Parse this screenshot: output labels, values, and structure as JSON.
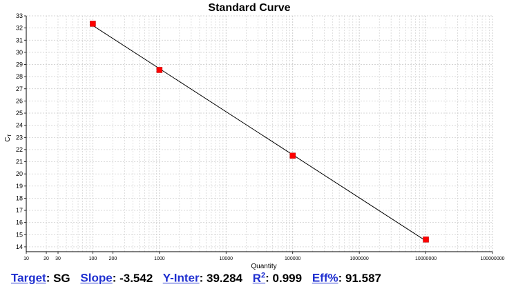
{
  "chart_data": {
    "type": "scatter",
    "title": "Standard Curve",
    "xlabel": "Quantity",
    "ylabel": "C",
    "ylabel_subscript": "T",
    "x_scale": "log",
    "xlim": [
      10,
      100000000
    ],
    "ylim": [
      13.6,
      33
    ],
    "y_ticks": [
      14,
      15,
      16,
      17,
      18,
      19,
      20,
      21,
      22,
      23,
      24,
      25,
      26,
      27,
      28,
      29,
      30,
      31,
      32,
      33
    ],
    "x_ticks": [
      {
        "v": 10,
        "label": "10"
      },
      {
        "v": 20,
        "label": "20"
      },
      {
        "v": 30,
        "label": "30"
      },
      {
        "v": 100,
        "label": "100"
      },
      {
        "v": 200,
        "label": "200"
      },
      {
        "v": 1000,
        "label": "1000"
      },
      {
        "v": 10000,
        "label": "10000"
      },
      {
        "v": 100000,
        "label": "100000"
      },
      {
        "v": 1000000,
        "label": "1000000"
      },
      {
        "v": 10000000,
        "label": "10000000"
      },
      {
        "v": 100000000,
        "label": "100000000"
      }
    ],
    "grid": true,
    "points": [
      {
        "x": 100,
        "y": 32.35
      },
      {
        "x": 1000,
        "y": 28.55
      },
      {
        "x": 100000,
        "y": 21.5
      },
      {
        "x": 10000000,
        "y": 14.6
      }
    ],
    "fit_line": {
      "slope": -3.542,
      "intercept": 39.284
    },
    "colors": {
      "marker": "#ff0000",
      "line": "#000000",
      "grid": "#c8c8c8",
      "link": "#1f2fd0"
    }
  },
  "stats": {
    "target_label": "Target",
    "target_value": "SG",
    "slope_label": "Slope",
    "slope_value": "-3.542",
    "yinter_label": "Y-Inter",
    "yinter_value": "39.284",
    "r2_label": "R",
    "r2_sup": "2",
    "r2_value": "0.999",
    "eff_label": "Eff%",
    "eff_value": "91.587"
  }
}
